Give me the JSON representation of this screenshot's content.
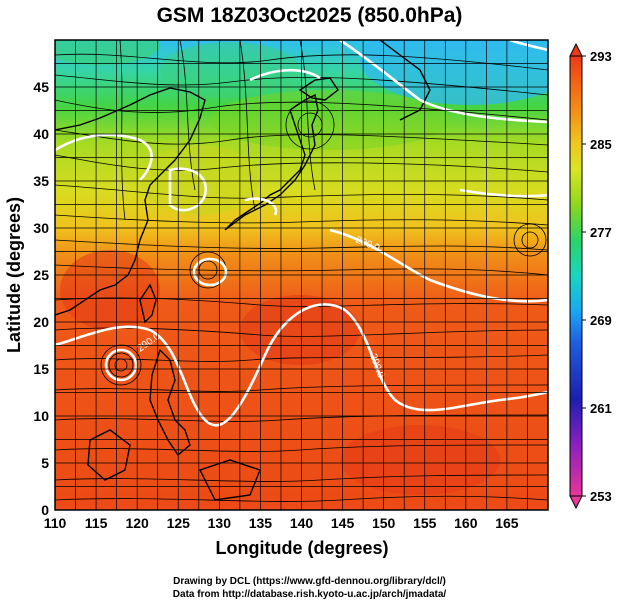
{
  "title": "GSM 18Z03Oct2025 (850.0hPa)",
  "x_axis": {
    "label": "Longitude (degrees)",
    "range": [
      110,
      170
    ],
    "ticks": [
      110,
      115,
      120,
      125,
      130,
      135,
      140,
      145,
      150,
      155,
      160,
      165
    ]
  },
  "y_axis": {
    "label": "Latitude  (degrees)",
    "range": [
      0,
      50
    ],
    "ticks": [
      0,
      5,
      10,
      15,
      20,
      25,
      30,
      35,
      40,
      45
    ]
  },
  "colorbar": {
    "ticks": [
      293,
      285,
      277,
      269,
      261,
      253
    ],
    "range": [
      253,
      293
    ],
    "colors": [
      "#e8359a",
      "#8a1fc0",
      "#1c1fb0",
      "#1f5fe0",
      "#19a7f2",
      "#17d7c0",
      "#2ad46a",
      "#8cd81b",
      "#d6e521",
      "#f0c81d",
      "#f29a17",
      "#f36a14",
      "#ea3a18"
    ]
  },
  "contour_labels": [
    "290.0",
    "290.0",
    "290.0"
  ],
  "grid": true,
  "credits": {
    "line1": "Drawing by DCL (https://www.gfd-dennou.org/library/dcl/)",
    "line2": "Data from http://database.rish.kyoto-u.ac.jp/arch/jmadata/"
  }
}
